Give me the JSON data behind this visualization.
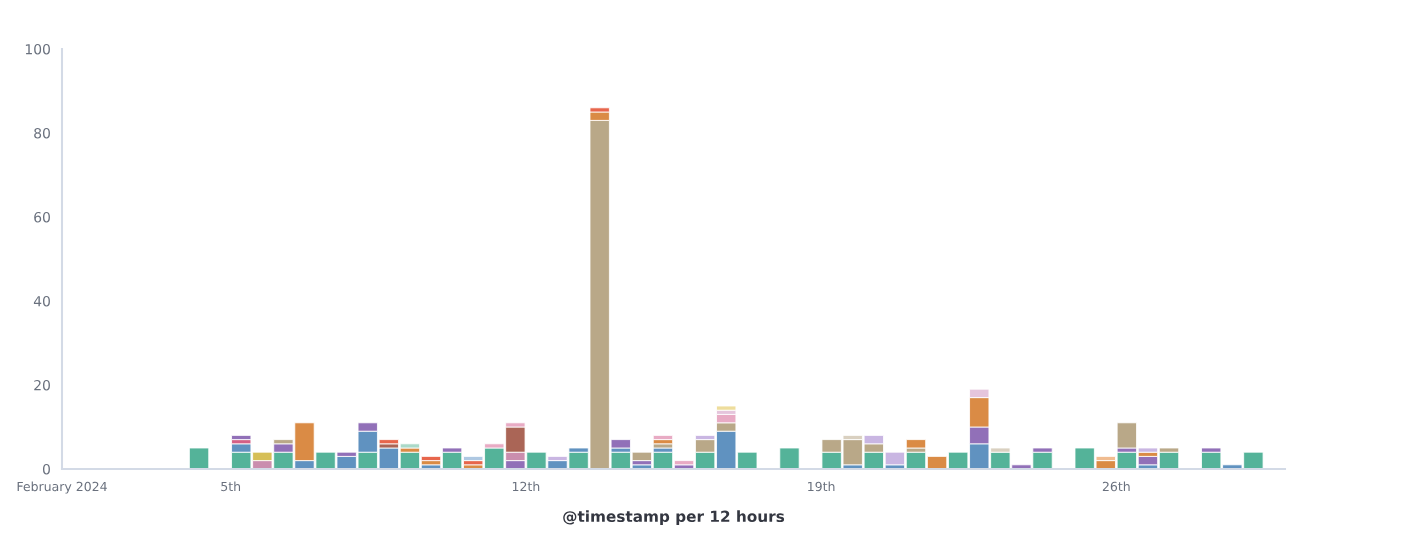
{
  "chart_data": {
    "type": "bar",
    "stacked": true,
    "xlabel": "@timestamp per 12 hours",
    "xlim": [
      "2024-02-01",
      "2024-03-01"
    ],
    "xticks": [
      {
        "value": "2024-02-01",
        "label": "February 2024"
      },
      {
        "value": "2024-02-05",
        "label": "5th"
      },
      {
        "value": "2024-02-12",
        "label": "12th"
      },
      {
        "value": "2024-02-19",
        "label": "19th"
      },
      {
        "value": "2024-02-26",
        "label": "26th"
      }
    ],
    "ylim": [
      0,
      100
    ],
    "yticks": [
      0,
      20,
      40,
      60,
      80,
      100
    ],
    "grid": false,
    "x": [
      "2024-02-04T06:00",
      "2024-02-05T06:00",
      "2024-02-05T18:00",
      "2024-02-06T06:00",
      "2024-02-06T18:00",
      "2024-02-07T06:00",
      "2024-02-07T18:00",
      "2024-02-08T06:00",
      "2024-02-08T18:00",
      "2024-02-09T06:00",
      "2024-02-09T18:00",
      "2024-02-10T06:00",
      "2024-02-10T18:00",
      "2024-02-11T06:00",
      "2024-02-11T18:00",
      "2024-02-12T06:00",
      "2024-02-12T18:00",
      "2024-02-13T06:00",
      "2024-02-13T18:00",
      "2024-02-14T06:00",
      "2024-02-14T18:00",
      "2024-02-15T06:00",
      "2024-02-15T18:00",
      "2024-02-16T06:00",
      "2024-02-16T18:00",
      "2024-02-17T06:00",
      "2024-02-18T06:00",
      "2024-02-19T06:00",
      "2024-02-19T18:00",
      "2024-02-20T06:00",
      "2024-02-20T18:00",
      "2024-02-21T06:00",
      "2024-02-21T18:00",
      "2024-02-22T06:00",
      "2024-02-22T18:00",
      "2024-02-23T06:00",
      "2024-02-23T18:00",
      "2024-02-24T06:00",
      "2024-02-25T06:00",
      "2024-02-25T18:00",
      "2024-02-26T06:00",
      "2024-02-26T18:00",
      "2024-02-27T06:00",
      "2024-02-28T06:00",
      "2024-02-28T18:00",
      "2024-02-29T06:00"
    ],
    "series": [
      {
        "color": "#54b399",
        "values": [
          5,
          4,
          null,
          4,
          null,
          4,
          null,
          4,
          null,
          4,
          null,
          4,
          null,
          5,
          null,
          4,
          null,
          4,
          null,
          4,
          null,
          4,
          null,
          4,
          null,
          4,
          5,
          4,
          null,
          4,
          null,
          4,
          null,
          4,
          null,
          4,
          null,
          4,
          5,
          null,
          4,
          null,
          4,
          4,
          null,
          4
        ]
      },
      {
        "color": "#6092c0",
        "values": [
          null,
          2,
          null,
          null,
          2,
          null,
          3,
          5,
          5,
          null,
          1,
          null,
          null,
          null,
          null,
          null,
          2,
          1,
          null,
          1,
          1,
          1,
          null,
          null,
          9,
          null,
          null,
          null,
          1,
          null,
          1,
          null,
          null,
          null,
          6,
          null,
          null,
          null,
          null,
          null,
          null,
          1,
          null,
          null,
          1,
          null
        ]
      },
      {
        "color": "#d36086",
        "values": [
          null,
          1,
          null,
          null,
          null,
          null,
          null,
          null,
          null,
          null,
          null,
          null,
          null,
          null,
          null,
          null,
          null,
          null,
          null,
          null,
          null,
          null,
          null,
          null,
          null,
          null,
          null,
          null,
          null,
          null,
          null,
          null,
          null,
          null,
          null,
          null,
          null,
          null,
          null,
          null,
          null,
          null,
          null,
          null,
          null,
          null
        ]
      },
      {
        "color": "#9170b8",
        "values": [
          null,
          1,
          null,
          2,
          null,
          null,
          1,
          2,
          null,
          null,
          null,
          1,
          null,
          null,
          2,
          null,
          null,
          null,
          null,
          2,
          1,
          null,
          1,
          null,
          null,
          null,
          null,
          null,
          null,
          null,
          null,
          null,
          null,
          null,
          4,
          null,
          1,
          1,
          null,
          null,
          1,
          2,
          null,
          1,
          null,
          null
        ]
      },
      {
        "color": "#ca8eae",
        "values": [
          null,
          null,
          2,
          null,
          null,
          null,
          null,
          null,
          null,
          null,
          null,
          null,
          null,
          null,
          2,
          null,
          null,
          null,
          null,
          null,
          null,
          null,
          null,
          null,
          null,
          null,
          null,
          null,
          null,
          null,
          null,
          null,
          null,
          null,
          null,
          null,
          null,
          null,
          null,
          null,
          null,
          null,
          null,
          null,
          null,
          null
        ]
      },
      {
        "color": "#d6bf57",
        "values": [
          null,
          null,
          2,
          null,
          null,
          null,
          null,
          null,
          null,
          null,
          null,
          null,
          null,
          null,
          null,
          null,
          null,
          null,
          null,
          null,
          null,
          null,
          null,
          null,
          null,
          null,
          null,
          null,
          null,
          null,
          null,
          null,
          null,
          null,
          null,
          null,
          null,
          null,
          null,
          null,
          null,
          null,
          null,
          null,
          null,
          null
        ]
      },
      {
        "color": "#b9a888",
        "values": [
          null,
          null,
          null,
          1,
          null,
          null,
          null,
          null,
          null,
          null,
          null,
          null,
          null,
          null,
          null,
          null,
          null,
          null,
          83,
          null,
          2,
          1,
          null,
          3,
          2,
          null,
          null,
          3,
          6,
          2,
          null,
          1,
          null,
          null,
          null,
          null,
          null,
          null,
          null,
          null,
          6,
          null,
          1,
          null,
          null,
          null
        ]
      },
      {
        "color": "#da8b45",
        "values": [
          null,
          null,
          null,
          null,
          9,
          null,
          null,
          null,
          null,
          1,
          1,
          null,
          1,
          null,
          null,
          null,
          null,
          null,
          2,
          null,
          null,
          1,
          null,
          null,
          null,
          null,
          null,
          null,
          null,
          null,
          null,
          2,
          3,
          null,
          7,
          null,
          null,
          null,
          null,
          2,
          null,
          1,
          null,
          null,
          null,
          null
        ]
      },
      {
        "color": "#aa6556",
        "values": [
          null,
          null,
          null,
          null,
          null,
          null,
          null,
          null,
          1,
          null,
          null,
          null,
          null,
          null,
          6,
          null,
          null,
          null,
          null,
          null,
          null,
          null,
          null,
          null,
          null,
          null,
          null,
          null,
          null,
          null,
          null,
          null,
          null,
          null,
          null,
          null,
          null,
          null,
          null,
          null,
          null,
          null,
          null,
          null,
          null,
          null
        ]
      },
      {
        "color": "#e7664c",
        "values": [
          null,
          null,
          null,
          null,
          null,
          null,
          null,
          null,
          1,
          null,
          1,
          null,
          1,
          null,
          null,
          null,
          null,
          null,
          1,
          null,
          null,
          null,
          null,
          null,
          null,
          null,
          null,
          null,
          null,
          null,
          null,
          null,
          null,
          null,
          null,
          null,
          null,
          null,
          null,
          null,
          null,
          null,
          null,
          null,
          null,
          null
        ]
      },
      {
        "color": "#aad9c8",
        "values": [
          null,
          null,
          null,
          null,
          null,
          null,
          null,
          null,
          null,
          1,
          null,
          null,
          null,
          null,
          null,
          null,
          null,
          null,
          null,
          null,
          null,
          null,
          null,
          null,
          null,
          null,
          null,
          null,
          null,
          null,
          null,
          null,
          null,
          null,
          null,
          null,
          null,
          null,
          null,
          null,
          null,
          null,
          null,
          null,
          null,
          null
        ]
      },
      {
        "color": "#aec8e2",
        "values": [
          null,
          null,
          null,
          null,
          null,
          null,
          null,
          null,
          null,
          null,
          null,
          null,
          1,
          null,
          null,
          null,
          null,
          null,
          null,
          null,
          null,
          null,
          null,
          null,
          null,
          null,
          null,
          null,
          null,
          null,
          null,
          null,
          null,
          null,
          null,
          null,
          null,
          null,
          null,
          null,
          null,
          null,
          null,
          null,
          null,
          null
        ]
      },
      {
        "color": "#e8abc4",
        "values": [
          null,
          null,
          null,
          null,
          null,
          null,
          null,
          null,
          null,
          null,
          null,
          null,
          null,
          1,
          1,
          null,
          null,
          null,
          null,
          null,
          null,
          1,
          1,
          null,
          2,
          null,
          null,
          null,
          null,
          null,
          null,
          null,
          null,
          null,
          null,
          null,
          null,
          null,
          null,
          null,
          null,
          null,
          null,
          null,
          null,
          null
        ]
      },
      {
        "color": "#c9b6e2",
        "values": [
          null,
          null,
          null,
          null,
          null,
          null,
          null,
          null,
          null,
          null,
          null,
          null,
          null,
          null,
          null,
          null,
          1,
          null,
          null,
          null,
          null,
          null,
          null,
          1,
          null,
          null,
          null,
          null,
          null,
          2,
          3,
          null,
          null,
          null,
          null,
          null,
          null,
          null,
          null,
          null,
          null,
          1,
          null,
          null,
          null,
          null
        ]
      },
      {
        "color": "#e5c5dc",
        "values": [
          null,
          null,
          null,
          null,
          null,
          null,
          null,
          null,
          null,
          null,
          null,
          null,
          null,
          null,
          null,
          null,
          null,
          null,
          null,
          null,
          null,
          null,
          null,
          null,
          1,
          null,
          null,
          null,
          null,
          null,
          null,
          null,
          null,
          null,
          2,
          null,
          null,
          null,
          null,
          null,
          null,
          null,
          null,
          null,
          null,
          null
        ]
      },
      {
        "color": "#eedd9c",
        "values": [
          null,
          null,
          null,
          null,
          null,
          null,
          null,
          null,
          null,
          null,
          null,
          null,
          null,
          null,
          null,
          null,
          null,
          null,
          null,
          null,
          null,
          null,
          null,
          null,
          1,
          null,
          null,
          null,
          null,
          null,
          null,
          null,
          null,
          null,
          null,
          null,
          null,
          null,
          null,
          null,
          null,
          null,
          null,
          null,
          null,
          null
        ]
      },
      {
        "color": "#d9d0c0",
        "values": [
          null,
          null,
          null,
          null,
          null,
          null,
          null,
          null,
          null,
          null,
          null,
          null,
          null,
          null,
          null,
          null,
          null,
          null,
          null,
          null,
          null,
          null,
          null,
          null,
          null,
          null,
          null,
          null,
          1,
          null,
          null,
          null,
          null,
          null,
          null,
          1,
          null,
          null,
          null,
          null,
          null,
          null,
          null,
          null,
          null,
          null
        ]
      },
      {
        "color": "#f0bc90",
        "values": [
          null,
          null,
          null,
          null,
          null,
          null,
          null,
          null,
          null,
          null,
          null,
          null,
          null,
          null,
          null,
          null,
          null,
          null,
          null,
          null,
          null,
          null,
          null,
          null,
          null,
          null,
          null,
          null,
          null,
          null,
          null,
          null,
          null,
          null,
          null,
          null,
          null,
          null,
          null,
          1,
          null,
          null,
          null,
          null,
          null,
          null
        ]
      }
    ]
  }
}
